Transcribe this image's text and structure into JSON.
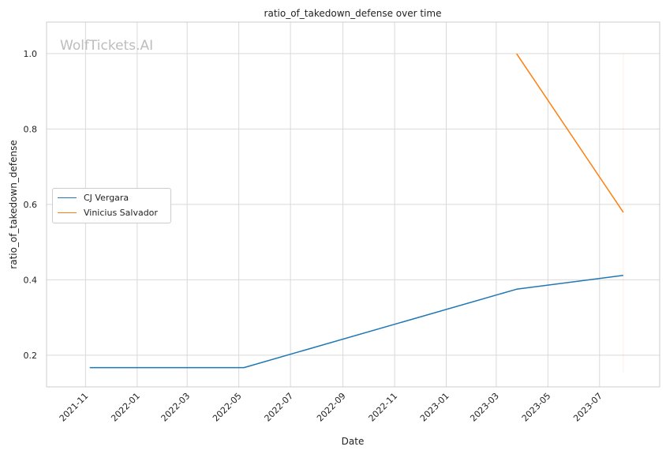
{
  "chart_data": {
    "type": "line",
    "title": "ratio_of_takedown_defense over time",
    "xlabel": "Date",
    "ylabel": "ratio_of_takedown_defense",
    "x_ticks": [
      "2021-11",
      "2022-01",
      "2022-03",
      "2022-05",
      "2022-07",
      "2022-09",
      "2022-11",
      "2023-01",
      "2023-03",
      "2023-05",
      "2023-07"
    ],
    "y_ticks": [
      "0.2",
      "0.4",
      "0.6",
      "0.8",
      "1.0"
    ],
    "xlim": [
      "2021-09-16",
      "2023-09-10"
    ],
    "ylim": [
      0.116,
      1.0836
    ],
    "grid": true,
    "legend_position": "center-left",
    "watermark": "WolfTickets.AI",
    "series": [
      {
        "name": "CJ Vergara",
        "color": "#1f77b4",
        "x": [
          "2021-11-06",
          "2022-05-07",
          "2023-03-25",
          "2023-07-29"
        ],
        "y": [
          0.167,
          0.167,
          0.375,
          0.412
        ]
      },
      {
        "name": "Vinicius Salvador",
        "color": "#ff7f0e",
        "x": [
          "2023-03-25",
          "2023-07-29"
        ],
        "y": [
          1.0,
          0.579
        ]
      }
    ]
  }
}
